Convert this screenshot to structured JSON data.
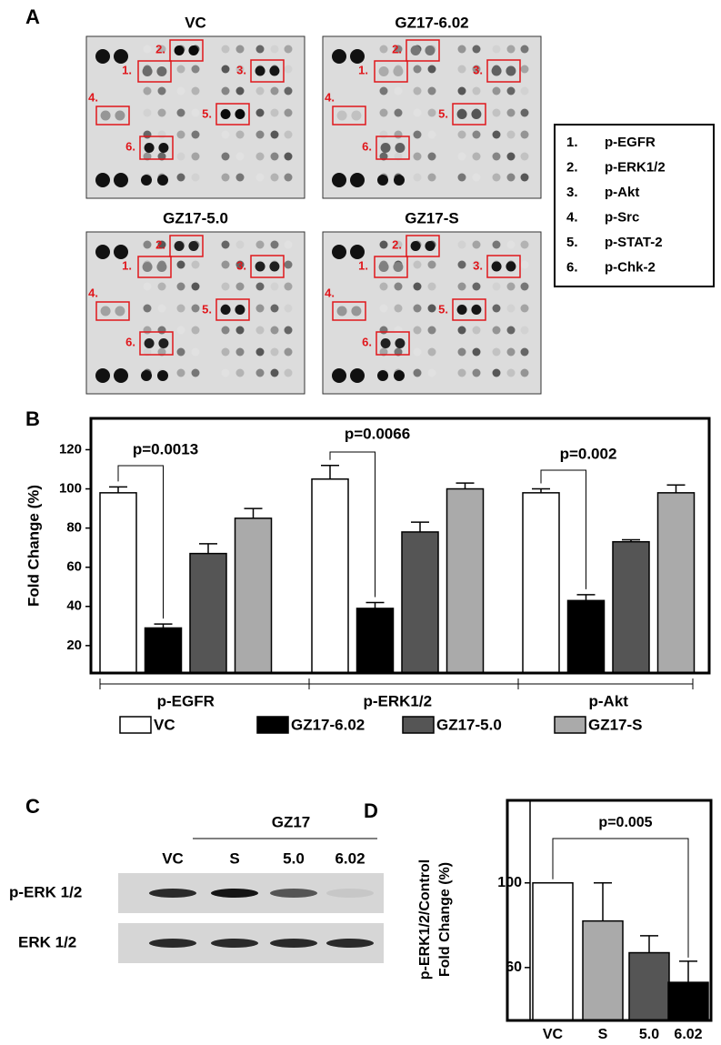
{
  "panel_a": {
    "label": "A",
    "blots": [
      {
        "title": "VC",
        "box_labels": [
          "1.",
          "2.",
          "3.",
          "4.",
          "5.",
          "6."
        ]
      },
      {
        "title": "GZ17-6.02",
        "box_labels": [
          "1.",
          "2.",
          "3.",
          "4.",
          "5.",
          "6."
        ]
      },
      {
        "title": "GZ17-5.0",
        "box_labels": [
          "1.",
          "2.",
          "3.",
          "4.",
          "5.",
          "6."
        ]
      },
      {
        "title": "GZ17-S",
        "box_labels": [
          "1.",
          "2.",
          "3.",
          "4.",
          "5.",
          "6."
        ]
      }
    ],
    "key": [
      {
        "number": "1.",
        "name": "p-EGFR"
      },
      {
        "number": "2.",
        "name": "p-ERK1/2"
      },
      {
        "number": "3.",
        "name": "p-Akt"
      },
      {
        "number": "4.",
        "name": "p-Src"
      },
      {
        "number": "5.",
        "name": "p-STAT-2"
      },
      {
        "number": "6.",
        "name": "p-Chk-2"
      }
    ]
  },
  "chart_data": [
    {
      "type": "bar",
      "panel_label": "B",
      "ylabel": "Fold Change (%)",
      "categories": [
        "p-EGFR",
        "p-ERK1/2",
        "p-Akt"
      ],
      "series": [
        {
          "name": "VC",
          "color": "#ffffff",
          "values": [
            98,
            105,
            98
          ],
          "errors": [
            3,
            7,
            2
          ]
        },
        {
          "name": "GZ17-6.02",
          "color": "#000000",
          "values": [
            29,
            39,
            43
          ],
          "errors": [
            2,
            3,
            3
          ]
        },
        {
          "name": "GZ17-5.0",
          "color": "#555555",
          "values": [
            67,
            78,
            73
          ],
          "errors": [
            5,
            5,
            1
          ]
        },
        {
          "name": "GZ17-S",
          "color": "#aaaaaa",
          "values": [
            85,
            100,
            98
          ],
          "errors": [
            5,
            3,
            4
          ]
        }
      ],
      "annotations": [
        "p=0.0013",
        "p=0.0066",
        "p=0.002"
      ],
      "ylim": [
        6,
        136
      ],
      "yticks": [
        20,
        40,
        60,
        80,
        100,
        120
      ]
    },
    {
      "type": "bar",
      "panel_label": "D",
      "ylabel": [
        "p-ERK1/2/Control",
        "Fold Change (%)"
      ],
      "categories": [
        "VC",
        "S",
        "5.0",
        "6.02"
      ],
      "values": [
        100,
        82,
        67,
        53
      ],
      "errors": [
        0,
        18,
        8,
        10
      ],
      "colors": [
        "#ffffff",
        "#aaaaaa",
        "#555555",
        "#000000"
      ],
      "annotation": "p=0.005",
      "ylim": [
        35,
        139
      ],
      "yticks": [
        60,
        100
      ]
    }
  ],
  "panel_c": {
    "label": "C",
    "group_label": "GZ17",
    "lanes": [
      "VC",
      "S",
      "5.0",
      "6.02"
    ],
    "rows": [
      "p-ERK 1/2",
      "ERK 1/2"
    ]
  }
}
